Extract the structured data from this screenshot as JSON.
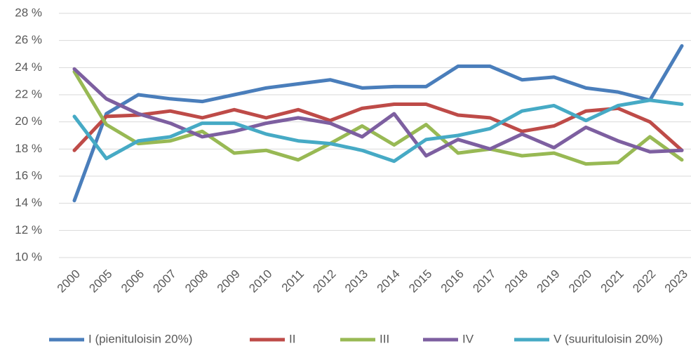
{
  "chart_data": {
    "type": "line",
    "categories": [
      "2000",
      "2005",
      "2006",
      "2007",
      "2008",
      "2009",
      "2010",
      "2011",
      "2012",
      "2013",
      "2014",
      "2015",
      "2016",
      "2017",
      "2018",
      "2019",
      "2020",
      "2021",
      "2022",
      "2023"
    ],
    "series": [
      {
        "name": "I (pienituloisin 20%)",
        "color": "#4a7ebb",
        "values": [
          14.2,
          20.6,
          22.0,
          21.7,
          21.5,
          22.0,
          22.5,
          22.8,
          23.1,
          22.5,
          22.6,
          22.6,
          24.1,
          24.1,
          23.1,
          23.3,
          22.5,
          22.2,
          21.6,
          25.6
        ]
      },
      {
        "name": "II",
        "color": "#be4b48",
        "values": [
          17.9,
          20.4,
          20.5,
          20.8,
          20.3,
          20.9,
          20.3,
          20.9,
          20.1,
          21.0,
          21.3,
          21.3,
          20.5,
          20.3,
          19.3,
          19.7,
          20.8,
          21.0,
          20.0,
          17.9
        ]
      },
      {
        "name": "III",
        "color": "#98b954",
        "values": [
          23.7,
          19.8,
          18.4,
          18.6,
          19.3,
          17.7,
          17.9,
          17.2,
          18.4,
          19.7,
          18.3,
          19.8,
          17.7,
          18.0,
          17.5,
          17.7,
          16.9,
          17.0,
          18.9,
          17.2
        ]
      },
      {
        "name": "IV",
        "color": "#7d5fa0",
        "values": [
          23.9,
          21.7,
          20.6,
          19.9,
          18.9,
          19.3,
          19.9,
          20.3,
          19.9,
          18.9,
          20.6,
          17.5,
          18.7,
          18.0,
          19.1,
          18.1,
          19.6,
          18.6,
          17.8,
          17.9
        ]
      },
      {
        "name": "V (suurituloisin 20%)",
        "color": "#46aac5",
        "values": [
          20.4,
          17.3,
          18.6,
          18.9,
          19.9,
          19.9,
          19.1,
          18.6,
          18.4,
          17.9,
          17.1,
          18.7,
          19.0,
          19.5,
          20.8,
          21.2,
          20.1,
          21.2,
          21.6,
          21.3
        ]
      }
    ],
    "ylim": [
      10,
      28
    ],
    "yticks": [
      {
        "value": 10,
        "label": "10 %"
      },
      {
        "value": 12,
        "label": "12 %"
      },
      {
        "value": 14,
        "label": "14 %"
      },
      {
        "value": 16,
        "label": "16 %"
      },
      {
        "value": 18,
        "label": "18 %"
      },
      {
        "value": 20,
        "label": "20 %"
      },
      {
        "value": 22,
        "label": "22 %"
      },
      {
        "value": 24,
        "label": "24 %"
      },
      {
        "value": 26,
        "label": "26 %"
      },
      {
        "value": 28,
        "label": "28 %"
      }
    ],
    "grid": true,
    "legend": "bottom"
  }
}
